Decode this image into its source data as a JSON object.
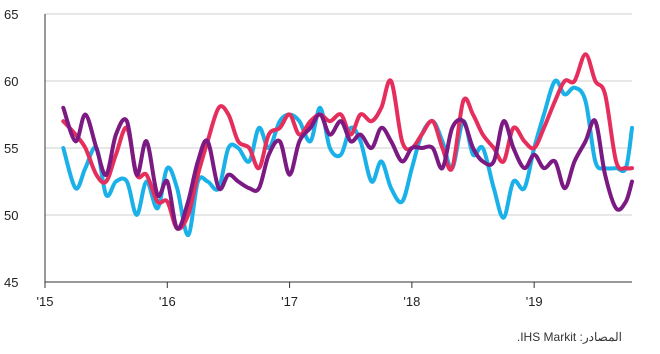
{
  "source_text": "المصادر: IHS Markit.",
  "chart_data": {
    "type": "line",
    "title": "",
    "xlabel": "",
    "ylabel": "",
    "ylim": [
      45,
      65
    ],
    "yticks": [
      45,
      50,
      55,
      60,
      65
    ],
    "xlim": [
      2015.0,
      2019.8
    ],
    "xticks": [
      {
        "value": 2015.0,
        "label": "'15"
      },
      {
        "value": 2016.0,
        "label": "'16"
      },
      {
        "value": 2017.0,
        "label": "'17"
      },
      {
        "value": 2018.0,
        "label": "'18"
      },
      {
        "value": 2019.0,
        "label": "'19"
      }
    ],
    "grid": "horizontal",
    "series": [
      {
        "color": "#1ab0e8",
        "x": [
          2015.15,
          2015.25,
          2015.33,
          2015.42,
          2015.5,
          2015.58,
          2015.67,
          2015.75,
          2015.83,
          2015.92,
          2016.0,
          2016.08,
          2016.17,
          2016.25,
          2016.33,
          2016.42,
          2016.5,
          2016.58,
          2016.67,
          2016.75,
          2016.83,
          2016.92,
          2017.0,
          2017.08,
          2017.17,
          2017.25,
          2017.33,
          2017.42,
          2017.5,
          2017.58,
          2017.67,
          2017.75,
          2017.83,
          2017.92,
          2018.0,
          2018.08,
          2018.17,
          2018.25,
          2018.33,
          2018.42,
          2018.5,
          2018.58,
          2018.67,
          2018.75,
          2018.83,
          2018.92,
          2019.0,
          2019.08,
          2019.17,
          2019.25,
          2019.33,
          2019.42,
          2019.5,
          2019.58,
          2019.67,
          2019.75,
          2019.8
        ],
        "values": [
          55,
          52,
          53.5,
          55,
          51.5,
          52.5,
          52.5,
          50,
          52.5,
          50.5,
          53.5,
          52,
          48.5,
          52.5,
          52.5,
          52,
          55,
          55,
          54,
          56.5,
          55,
          57,
          57.5,
          57,
          55.5,
          58,
          55,
          54.5,
          56.5,
          55.5,
          52.5,
          54,
          52,
          51,
          53.5,
          56,
          57,
          55.5,
          53.5,
          57,
          54.5,
          55,
          52,
          49.8,
          52.5,
          52,
          55,
          57.5,
          60,
          59,
          59.5,
          58.5,
          54,
          53.5,
          53.5,
          53.5,
          56.5
        ]
      },
      {
        "color": "#e62e5c",
        "x": [
          2015.15,
          2015.25,
          2015.33,
          2015.42,
          2015.5,
          2015.58,
          2015.67,
          2015.75,
          2015.83,
          2015.92,
          2016.0,
          2016.08,
          2016.17,
          2016.25,
          2016.33,
          2016.42,
          2016.5,
          2016.58,
          2016.67,
          2016.75,
          2016.83,
          2016.92,
          2017.0,
          2017.08,
          2017.17,
          2017.25,
          2017.33,
          2017.42,
          2017.5,
          2017.58,
          2017.67,
          2017.75,
          2017.83,
          2017.92,
          2018.0,
          2018.08,
          2018.17,
          2018.25,
          2018.33,
          2018.42,
          2018.5,
          2018.58,
          2018.67,
          2018.75,
          2018.83,
          2018.92,
          2019.0,
          2019.08,
          2019.17,
          2019.25,
          2019.33,
          2019.42,
          2019.5,
          2019.58,
          2019.67,
          2019.75,
          2019.8
        ],
        "values": [
          57,
          56,
          55,
          53,
          52.5,
          54.5,
          56.5,
          53,
          53,
          51,
          51,
          49,
          50,
          53,
          55.5,
          58,
          57.5,
          55.5,
          55,
          53.5,
          56,
          56.5,
          57.5,
          56,
          57,
          57.5,
          57,
          57.5,
          56,
          57.5,
          57,
          58,
          60,
          55.5,
          55,
          56,
          57,
          55,
          53.5,
          58.5,
          57.5,
          56,
          55,
          54,
          56.5,
          55.5,
          55,
          56.5,
          58.5,
          60,
          60,
          62,
          60,
          59,
          54,
          53.5,
          53.5
        ]
      },
      {
        "color": "#7a1a82",
        "x": [
          2015.15,
          2015.25,
          2015.33,
          2015.42,
          2015.5,
          2015.58,
          2015.67,
          2015.75,
          2015.83,
          2015.92,
          2016.0,
          2016.08,
          2016.17,
          2016.25,
          2016.33,
          2016.42,
          2016.5,
          2016.58,
          2016.67,
          2016.75,
          2016.83,
          2016.92,
          2017.0,
          2017.08,
          2017.17,
          2017.25,
          2017.33,
          2017.42,
          2017.5,
          2017.58,
          2017.67,
          2017.75,
          2017.83,
          2017.92,
          2018.0,
          2018.08,
          2018.17,
          2018.25,
          2018.33,
          2018.42,
          2018.5,
          2018.58,
          2018.67,
          2018.75,
          2018.83,
          2018.92,
          2019.0,
          2019.08,
          2019.17,
          2019.25,
          2019.33,
          2019.42,
          2019.5,
          2019.58,
          2019.67,
          2019.75,
          2019.8
        ],
        "values": [
          58,
          55.5,
          57.5,
          55,
          53,
          56,
          57,
          53,
          55.5,
          51.5,
          52.5,
          49,
          51,
          54,
          55.5,
          52,
          53,
          52.5,
          52,
          52,
          54.5,
          55.5,
          53,
          55.5,
          56.5,
          57.5,
          56,
          57,
          55.5,
          56,
          55,
          56.5,
          55.5,
          54,
          55,
          55,
          55,
          53.5,
          56.5,
          57,
          55,
          54,
          54,
          57,
          55,
          53.5,
          54.5,
          53.5,
          54,
          52,
          54,
          55.5,
          57,
          53,
          50.5,
          51,
          52.5
        ]
      }
    ]
  }
}
